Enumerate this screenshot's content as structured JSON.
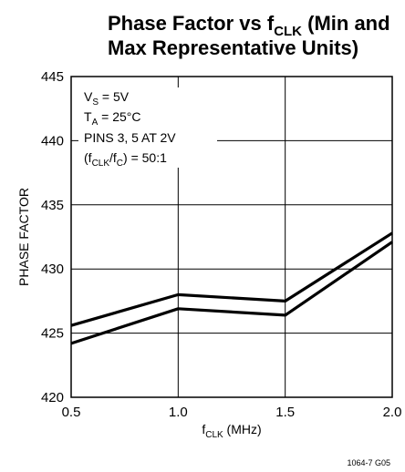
{
  "chart_data": {
    "type": "line",
    "title": {
      "line1_pre": "Phase Factor vs f",
      "line1_sub": "CLK",
      "line1_post": " (Min and",
      "line2": "Max Representative Units)"
    },
    "xlabel": {
      "pre": "f",
      "sub": "CLK",
      "post": " (MHz)"
    },
    "ylabel": "PHASE FACTOR",
    "xlim": [
      0.5,
      2.0
    ],
    "ylim": [
      420,
      445
    ],
    "xticks": [
      "0.5",
      "1.0",
      "1.5",
      "2.0"
    ],
    "yticks": [
      "420",
      "425",
      "430",
      "435",
      "440",
      "445"
    ],
    "grid": true,
    "annotations": {
      "vs": {
        "pre": "V",
        "sub": "S",
        "post": " = 5V"
      },
      "ta": {
        "pre": "T",
        "sub": "A",
        "post": " = 25°C"
      },
      "pins": "PINS 3, 5 AT 2V",
      "ratio": {
        "p1": "(f",
        "s1": "CLK",
        "p2": "/f",
        "s2": "C",
        "p3": ") = 50:1"
      }
    },
    "series": [
      {
        "x": [
          0.5,
          1.0,
          1.5,
          2.0
        ],
        "y": [
          425.6,
          428.0,
          427.5,
          432.8
        ]
      },
      {
        "x": [
          0.5,
          1.0,
          1.5,
          2.0
        ],
        "y": [
          424.2,
          426.9,
          426.4,
          432.1
        ]
      }
    ],
    "figure_code": "1064-7 G05"
  }
}
